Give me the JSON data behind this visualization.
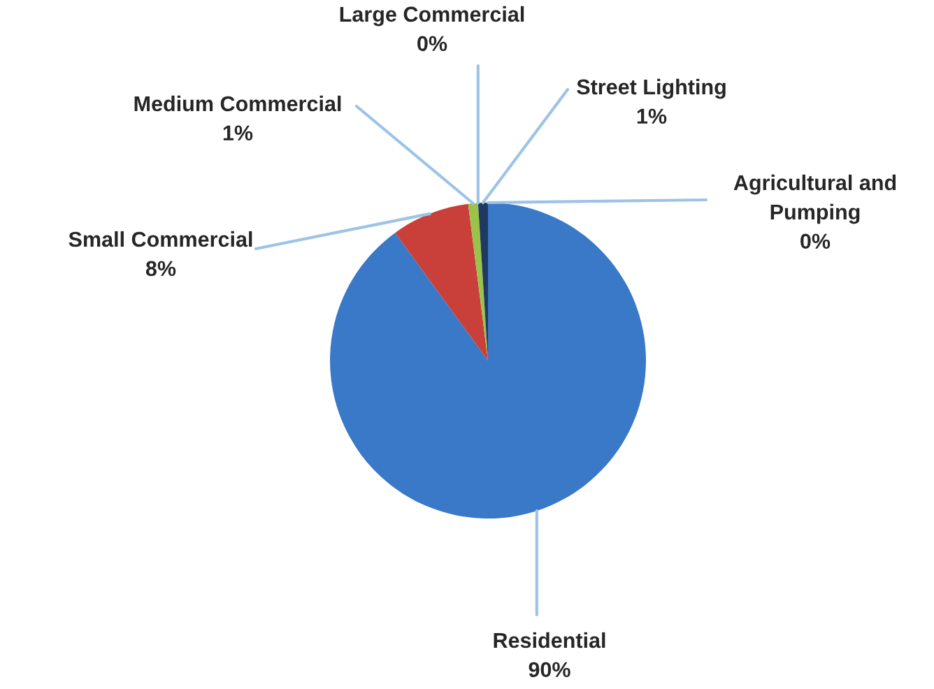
{
  "chart_data": {
    "type": "pie",
    "categories": [
      "Residential",
      "Small Commercial",
      "Medium Commercial",
      "Large Commercial",
      "Street Lighting",
      "Agricultural and Pumping"
    ],
    "values": [
      90,
      8,
      1,
      0,
      1,
      0
    ],
    "colors": [
      "#3a78c8",
      "#c9403a",
      "#9bc34a",
      "#8064a2",
      "#1f3a60",
      "#f79646"
    ],
    "value_labels": [
      "90%",
      "8%",
      "1%",
      "0%",
      "1%",
      "0%"
    ],
    "legend": false
  }
}
